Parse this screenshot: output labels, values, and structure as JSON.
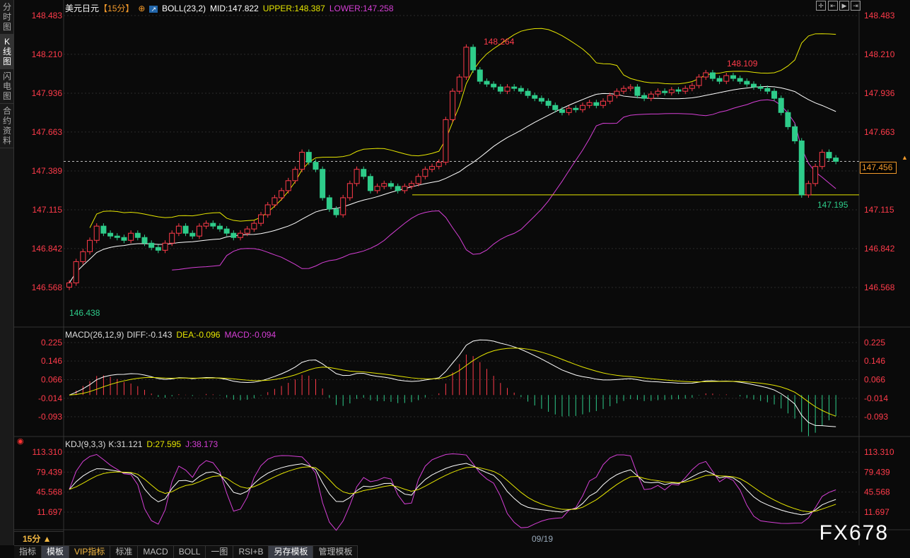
{
  "sidebar": {
    "tabs": [
      "分时图",
      "K线图",
      "闪电图",
      "合约资料"
    ],
    "active": 1
  },
  "header": {
    "symbol": "美元日元",
    "period": "【15分】",
    "indicator": "BOLL(23,2)",
    "mid": "MID:147.822",
    "upper": "UPPER:148.387",
    "lower": "LOWER:147.258"
  },
  "macd_header": {
    "name": "MACD(26,12,9)",
    "diff": "DIFF:-0.143",
    "dea": "DEA:-0.096",
    "macd": "MACD:-0.094"
  },
  "kdj_header": {
    "name": "KDJ(9,3,3)",
    "k": "K:31.121",
    "d": "D:27.595",
    "j": "J:38.173"
  },
  "price_axis": [
    "148.483",
    "148.210",
    "147.936",
    "147.663",
    "147.389",
    "147.115",
    "146.842",
    "146.568"
  ],
  "macd_axis": [
    "0.225",
    "0.146",
    "0.066",
    "-0.014",
    "-0.093"
  ],
  "kdj_axis": [
    "113.310",
    "79.439",
    "45.568",
    "11.697"
  ],
  "annotations": {
    "high": "148.264",
    "low": "146.438",
    "high2": "148.109",
    "low2": "147.195"
  },
  "current_price": "147.456",
  "time_axis": {
    "label": "09/19"
  },
  "period_selector": "15分 ▲",
  "bottom_tabs": [
    "指标",
    "模板",
    "VIP指标",
    "标准",
    "MACD",
    "BOLL",
    "一图",
    "RSI+B",
    "另存模板",
    "管理模板"
  ],
  "watermark": "FX678",
  "colors": {
    "up": "#ff3b4a",
    "down": "#2ecc8a",
    "mid": "#ffffff",
    "upper": "#e6e600",
    "lower": "#d63fd6",
    "axis": "#ff3b4a"
  },
  "chart_data": {
    "type": "candlestick",
    "support_level": 147.22,
    "closes": [
      146.6,
      146.75,
      146.82,
      146.9,
      147.0,
      146.95,
      146.93,
      146.92,
      146.9,
      146.95,
      146.92,
      146.88,
      146.85,
      146.83,
      146.88,
      146.95,
      147.0,
      146.95,
      146.93,
      147.0,
      147.02,
      147.0,
      146.98,
      146.95,
      146.92,
      146.95,
      146.98,
      147.02,
      147.08,
      147.15,
      147.2,
      147.25,
      147.32,
      147.4,
      147.52,
      147.45,
      147.4,
      147.2,
      147.12,
      147.08,
      147.2,
      147.3,
      147.4,
      147.35,
      147.25,
      147.28,
      147.3,
      147.28,
      147.25,
      147.28,
      147.3,
      147.35,
      147.4,
      147.42,
      147.45,
      147.75,
      147.95,
      148.05,
      148.26,
      148.1,
      148.02,
      148.0,
      147.98,
      147.95,
      147.98,
      147.97,
      147.95,
      147.92,
      147.9,
      147.88,
      147.85,
      147.82,
      147.8,
      147.83,
      147.82,
      147.85,
      147.87,
      147.85,
      147.88,
      147.92,
      147.95,
      147.97,
      147.98,
      147.92,
      147.9,
      147.93,
      147.95,
      147.94,
      147.96,
      147.95,
      147.97,
      147.99,
      148.05,
      148.08,
      148.04,
      148.02,
      148.06,
      148.04,
      148.02,
      148.0,
      147.98,
      147.97,
      147.95,
      147.9,
      147.8,
      147.7,
      147.6,
      147.22,
      147.3,
      147.42,
      147.52,
      147.48,
      147.456
    ]
  }
}
